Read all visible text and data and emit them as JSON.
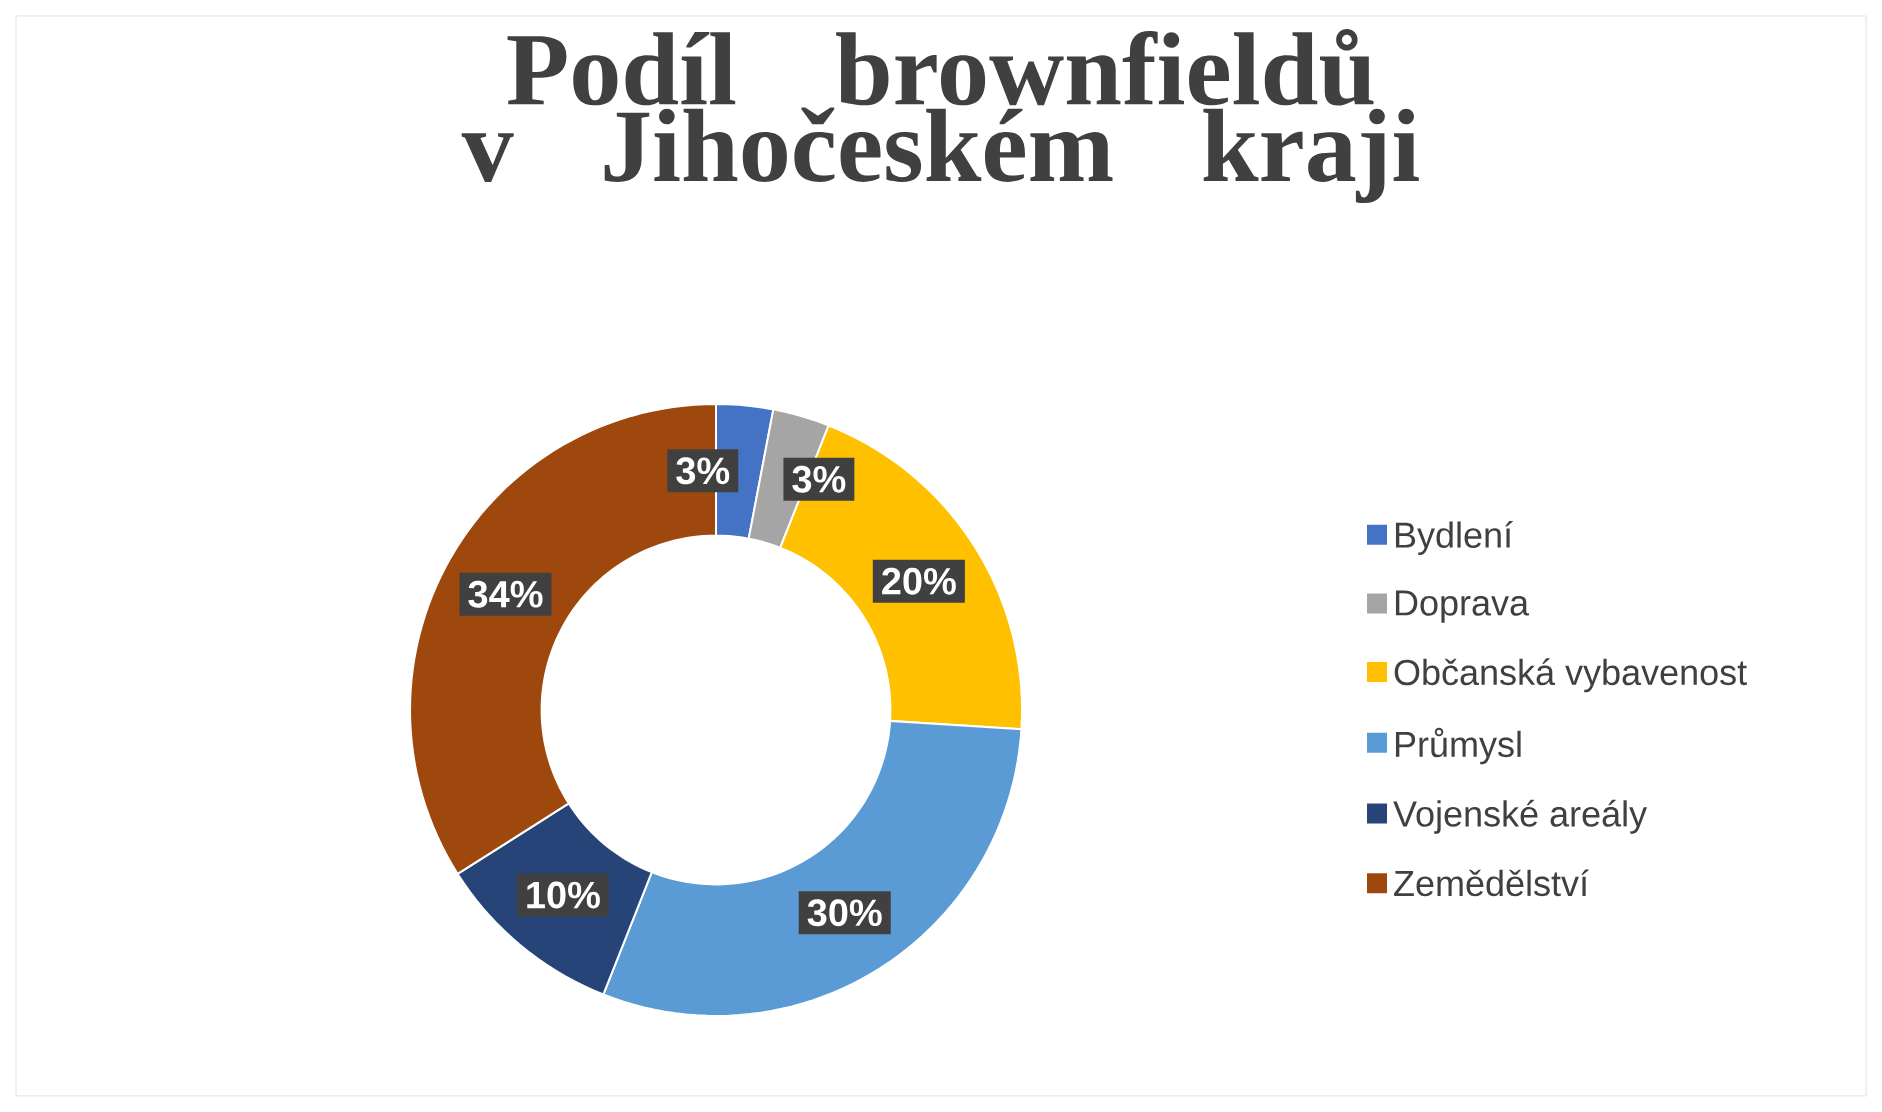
{
  "chart_data": {
    "type": "donut",
    "title": "Podíl brownfieldů v Jihočeském kraji",
    "categories": [
      "Bydlení",
      "Doprava",
      "Občanská vybavenost",
      "Průmysl",
      "Vojenské areály",
      "Zemědělství"
    ],
    "values": [
      3,
      3,
      20,
      30,
      10,
      34
    ],
    "value_labels": [
      "3%",
      "3%",
      "20%",
      "30%",
      "10%",
      "34%"
    ],
    "colors": [
      "#4472c4",
      "#a5a5a5",
      "#ffc000",
      "#5b9bd5",
      "#264478",
      "#9e480e"
    ],
    "legend": "right"
  }
}
